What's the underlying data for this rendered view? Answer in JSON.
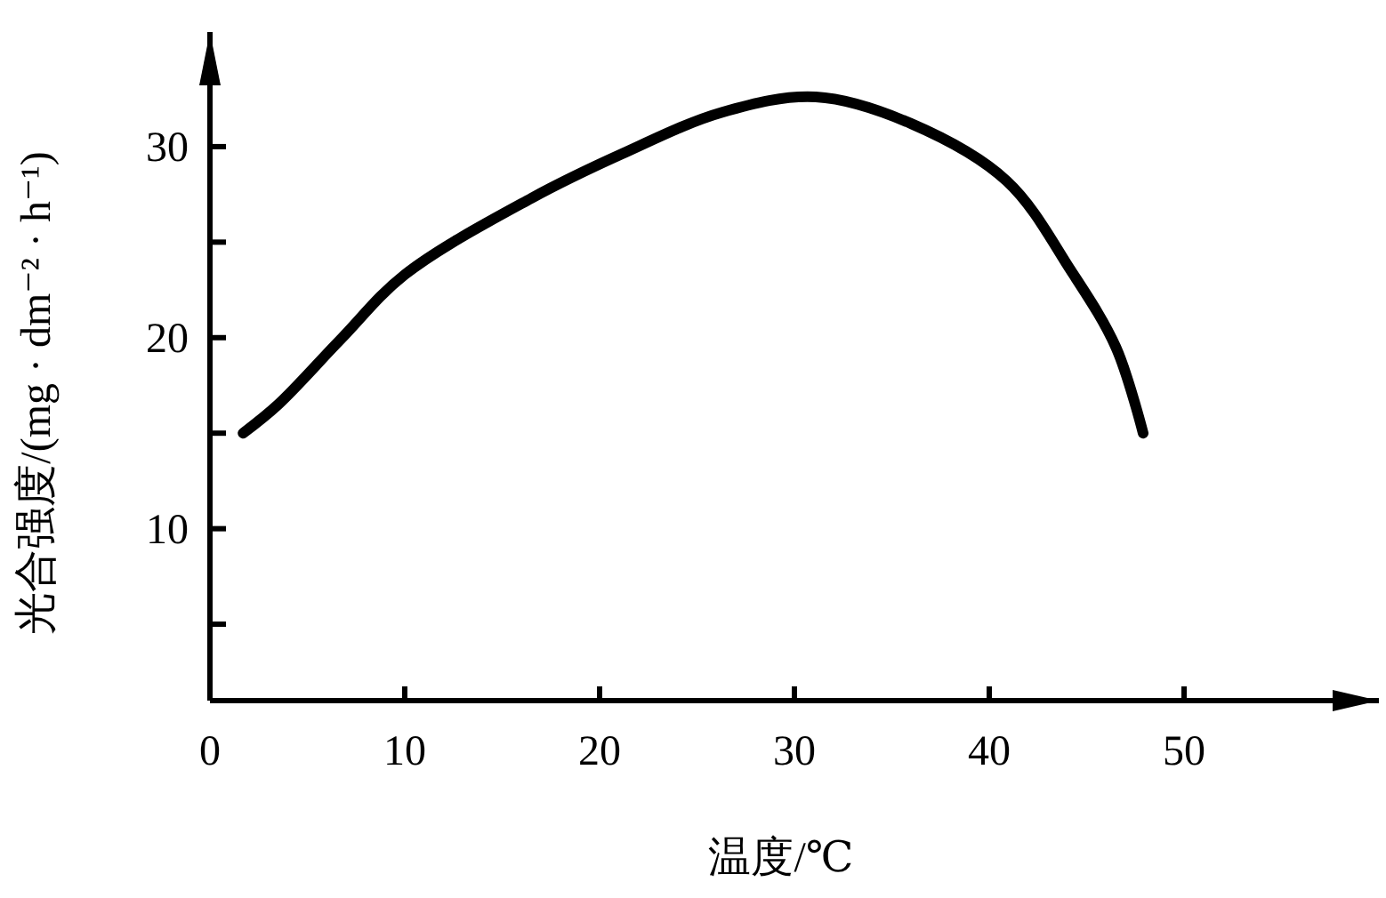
{
  "chart_data": {
    "type": "line",
    "xlabel": "温度/℃",
    "ylabel": "光合强度/(mg · dm⁻² · h⁻¹)",
    "x": [
      1.7,
      3.5,
      6.7,
      10,
      16.5,
      21.1,
      26.3,
      31.1,
      36,
      40.9,
      44.2,
      46.5,
      47.9
    ],
    "series": [
      {
        "color": "#000000",
        "values": [
          15.0,
          16.5,
          19.9,
          23.3,
          27.3,
          29.6,
          31.8,
          32.6,
          31.2,
          28.2,
          23.5,
          19.5,
          15.0
        ]
      }
    ],
    "xlim": [
      0,
      60
    ],
    "ylim": [
      1,
      36
    ],
    "xticks": [
      0,
      10,
      20,
      30,
      40,
      50
    ],
    "yticks": [
      {
        "value": 5,
        "label": null
      },
      10,
      {
        "value": 15,
        "label": null
      },
      20,
      {
        "value": 25,
        "label": null
      },
      30
    ],
    "grid": false,
    "marker": "none",
    "line_style": "solid"
  }
}
